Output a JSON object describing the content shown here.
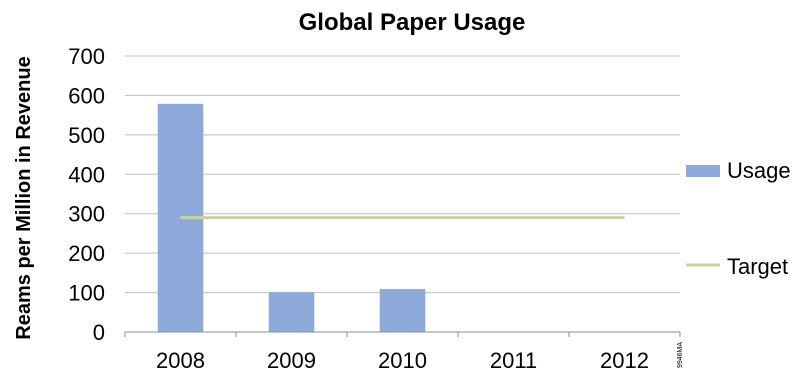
{
  "chart_data": {
    "type": "bar",
    "title": "Global Paper Usage",
    "xlabel": "",
    "ylabel": "Reams per Million in Revenue",
    "categories": [
      "2008",
      "2009",
      "2010",
      "2011",
      "2012"
    ],
    "ylim": [
      0,
      700
    ],
    "yticks": [
      0,
      100,
      200,
      300,
      400,
      500,
      600,
      700
    ],
    "grid": true,
    "legend_position": "right",
    "series": [
      {
        "name": "Usage",
        "kind": "bar",
        "color": "#8eaadb",
        "values": [
          578,
          100,
          108,
          null,
          null
        ]
      },
      {
        "name": "Target",
        "kind": "line",
        "color": "#c3d69b",
        "values": [
          290,
          290,
          290,
          290,
          290
        ]
      }
    ],
    "annotation": "9946MA"
  }
}
